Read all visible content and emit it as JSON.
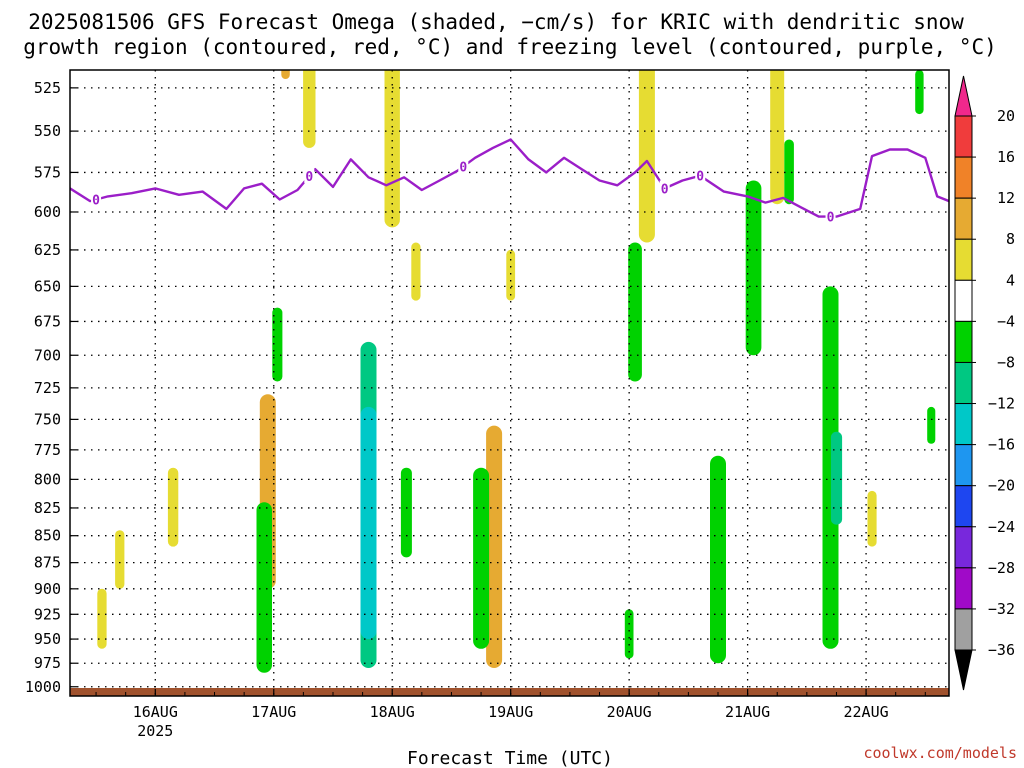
{
  "title": {
    "line1": "2025081506 GFS Forecast Omega (shaded, −cm/s) for KRIC with dendritic snow",
    "line2": "growth region (contoured, red, °C) and freezing level (contoured, purple, °C)"
  },
  "credit": "coolwx.com/models",
  "chart_data": {
    "type": "heatmap",
    "title": "2025081506 GFS Forecast Omega (shaded, −cm/s) for KRIC with dendritic snow growth region (contoured, red, °C) and freezing level (contoured, purple, °C)",
    "xlabel": "Forecast Time (UTC)",
    "ylabel": "",
    "x_ticks": [
      {
        "label": "16AUG",
        "sub": "2025",
        "day": 1
      },
      {
        "label": "17AUG",
        "sub": "",
        "day": 2
      },
      {
        "label": "18AUG",
        "sub": "",
        "day": 3
      },
      {
        "label": "19AUG",
        "sub": "",
        "day": 4
      },
      {
        "label": "20AUG",
        "sub": "",
        "day": 5
      },
      {
        "label": "21AUG",
        "sub": "",
        "day": 6
      },
      {
        "label": "22AUG",
        "sub": "",
        "day": 7
      }
    ],
    "xlim_days": [
      0.28,
      7.7
    ],
    "y_ticks": [
      "525",
      "550",
      "575",
      "600",
      "625",
      "650",
      "675",
      "700",
      "725",
      "750",
      "775",
      "800",
      "825",
      "850",
      "875",
      "900",
      "925",
      "950",
      "975",
      "1000"
    ],
    "ylim_hpa": [
      1010,
      515
    ],
    "colorbar": {
      "labels": [
        "20",
        "16",
        "12",
        "8",
        "4",
        "−4",
        "−8",
        "−12",
        "−16",
        "−20",
        "−24",
        "−28",
        "−32",
        "−36"
      ],
      "bins": [
        {
          "range": ">20",
          "color": "#f0288c"
        },
        {
          "range": "16 to 20",
          "color": "#f03c3c"
        },
        {
          "range": "12 to 16",
          "color": "#f08228"
        },
        {
          "range": "8 to 12",
          "color": "#e6aa32"
        },
        {
          "range": "4 to 8",
          "color": "#e6dc32"
        },
        {
          "range": "-4 to 4",
          "color": "#ffffff"
        },
        {
          "range": "-8 to -4",
          "color": "#00d200"
        },
        {
          "range": "-12 to -8",
          "color": "#00c882"
        },
        {
          "range": "-16 to -12",
          "color": "#00c8c8"
        },
        {
          "range": "-20 to -16",
          "color": "#1e96f0"
        },
        {
          "range": "-24 to -20",
          "color": "#1e46f0"
        },
        {
          "range": "-28 to -24",
          "color": "#7828dc"
        },
        {
          "range": "-32 to -28",
          "color": "#a00ac8"
        },
        {
          "range": "-36 to -32",
          "color": "#a0a0a0"
        },
        {
          "range": "<-36",
          "color": "#000000"
        }
      ]
    },
    "freezing_level_label": "0",
    "freezing_level_label_days": [
      0.5,
      2.3,
      3.6,
      5.3,
      5.6,
      6.7
    ],
    "freezing_level": [
      [
        0.28,
        585
      ],
      [
        0.45,
        593
      ],
      [
        0.6,
        590
      ],
      [
        0.8,
        588
      ],
      [
        1.0,
        585
      ],
      [
        1.2,
        589
      ],
      [
        1.4,
        587
      ],
      [
        1.6,
        598
      ],
      [
        1.75,
        585
      ],
      [
        1.9,
        582
      ],
      [
        2.05,
        592
      ],
      [
        2.2,
        586
      ],
      [
        2.35,
        573
      ],
      [
        2.5,
        584
      ],
      [
        2.65,
        567
      ],
      [
        2.8,
        578
      ],
      [
        2.95,
        583
      ],
      [
        3.1,
        578
      ],
      [
        3.25,
        586
      ],
      [
        3.4,
        580
      ],
      [
        3.55,
        574
      ],
      [
        3.7,
        566
      ],
      [
        3.85,
        560
      ],
      [
        4.0,
        555
      ],
      [
        4.15,
        567
      ],
      [
        4.3,
        575
      ],
      [
        4.45,
        566
      ],
      [
        4.6,
        573
      ],
      [
        4.75,
        580
      ],
      [
        4.9,
        583
      ],
      [
        5.05,
        575
      ],
      [
        5.15,
        568
      ],
      [
        5.3,
        585
      ],
      [
        5.45,
        580
      ],
      [
        5.6,
        577
      ],
      [
        5.8,
        587
      ],
      [
        6.0,
        590
      ],
      [
        6.15,
        594
      ],
      [
        6.3,
        591
      ],
      [
        6.45,
        597
      ],
      [
        6.6,
        603
      ],
      [
        6.75,
        603
      ],
      [
        6.95,
        598
      ],
      [
        7.05,
        565
      ],
      [
        7.2,
        561
      ],
      [
        7.35,
        561
      ],
      [
        7.5,
        566
      ],
      [
        7.6,
        590
      ],
      [
        7.7,
        593
      ]
    ],
    "omega_regions": [
      {
        "bin": "8 to 12",
        "value": 10,
        "day": 2.1,
        "p": [
          495,
          520
        ]
      },
      {
        "bin": "4 to 8",
        "value": 5,
        "day": 2.3,
        "p": [
          495,
          560
        ]
      },
      {
        "bin": "4 to 8",
        "value": 6,
        "day": 3.0,
        "p": [
          508,
          610
        ]
      },
      {
        "bin": "4 to 8",
        "value": 6,
        "day": 3.2,
        "p": [
          620,
          660
        ]
      },
      {
        "bin": "4 to 8",
        "value": 5,
        "day": 4.0,
        "p": [
          625,
          660
        ]
      },
      {
        "bin": "4 to 8",
        "value": 6,
        "day": 5.15,
        "p": [
          505,
          620
        ]
      },
      {
        "bin": "4 to 8",
        "value": 7,
        "day": 6.25,
        "p": [
          510,
          595
        ]
      },
      {
        "bin": "-8 to -4",
        "value": -6,
        "day": 6.35,
        "p": [
          555,
          595
        ]
      },
      {
        "bin": "-8 to -4",
        "value": -5,
        "day": 7.45,
        "p": [
          515,
          540
        ]
      },
      {
        "bin": "-8 to -4",
        "value": -7,
        "day": 6.05,
        "p": [
          580,
          700
        ]
      },
      {
        "bin": "-8 to -4",
        "value": -6,
        "day": 5.05,
        "p": [
          620,
          720
        ]
      },
      {
        "bin": "4 to 8",
        "value": 5,
        "day": 1.15,
        "p": [
          790,
          860
        ]
      },
      {
        "bin": "4 to 8",
        "value": 5,
        "day": 0.7,
        "p": [
          845,
          900
        ]
      },
      {
        "bin": "4 to 8",
        "value": 5,
        "day": 0.55,
        "p": [
          900,
          960
        ]
      },
      {
        "bin": "8 to 12",
        "value": 9,
        "day": 1.95,
        "p": [
          730,
          900
        ]
      },
      {
        "bin": "-8 to -4",
        "value": -6,
        "day": 2.03,
        "p": [
          665,
          720
        ]
      },
      {
        "bin": "-8 to -4",
        "value": -7,
        "day": 1.92,
        "p": [
          820,
          985
        ]
      },
      {
        "bin": "-12 to -8",
        "value": -11,
        "day": 2.8,
        "p": [
          690,
          980
        ]
      },
      {
        "bin": "-16 to -12",
        "value": -14,
        "day": 2.8,
        "p": [
          740,
          950
        ]
      },
      {
        "bin": "-8 to -4",
        "value": -6,
        "day": 3.12,
        "p": [
          790,
          870
        ]
      },
      {
        "bin": "8 to 12",
        "value": 9,
        "day": 3.86,
        "p": [
          755,
          980
        ]
      },
      {
        "bin": "-8 to -4",
        "value": -6,
        "day": 3.75,
        "p": [
          790,
          960
        ]
      },
      {
        "bin": "-8 to -4",
        "value": -6,
        "day": 5.0,
        "p": [
          920,
          970
        ]
      },
      {
        "bin": "-8 to -4",
        "value": -7,
        "day": 5.75,
        "p": [
          780,
          975
        ]
      },
      {
        "bin": "-8 to -4",
        "value": -7,
        "day": 6.7,
        "p": [
          650,
          960
        ]
      },
      {
        "bin": "-12 to -8",
        "value": -9,
        "day": 6.75,
        "p": [
          760,
          840
        ]
      },
      {
        "bin": "4 to 8",
        "value": 6,
        "day": 7.05,
        "p": [
          810,
          860
        ]
      },
      {
        "bin": "-8 to -4",
        "value": -6,
        "day": 7.55,
        "p": [
          740,
          770
        ]
      }
    ],
    "surface_layer_color": "#a0522d",
    "grid": true
  }
}
